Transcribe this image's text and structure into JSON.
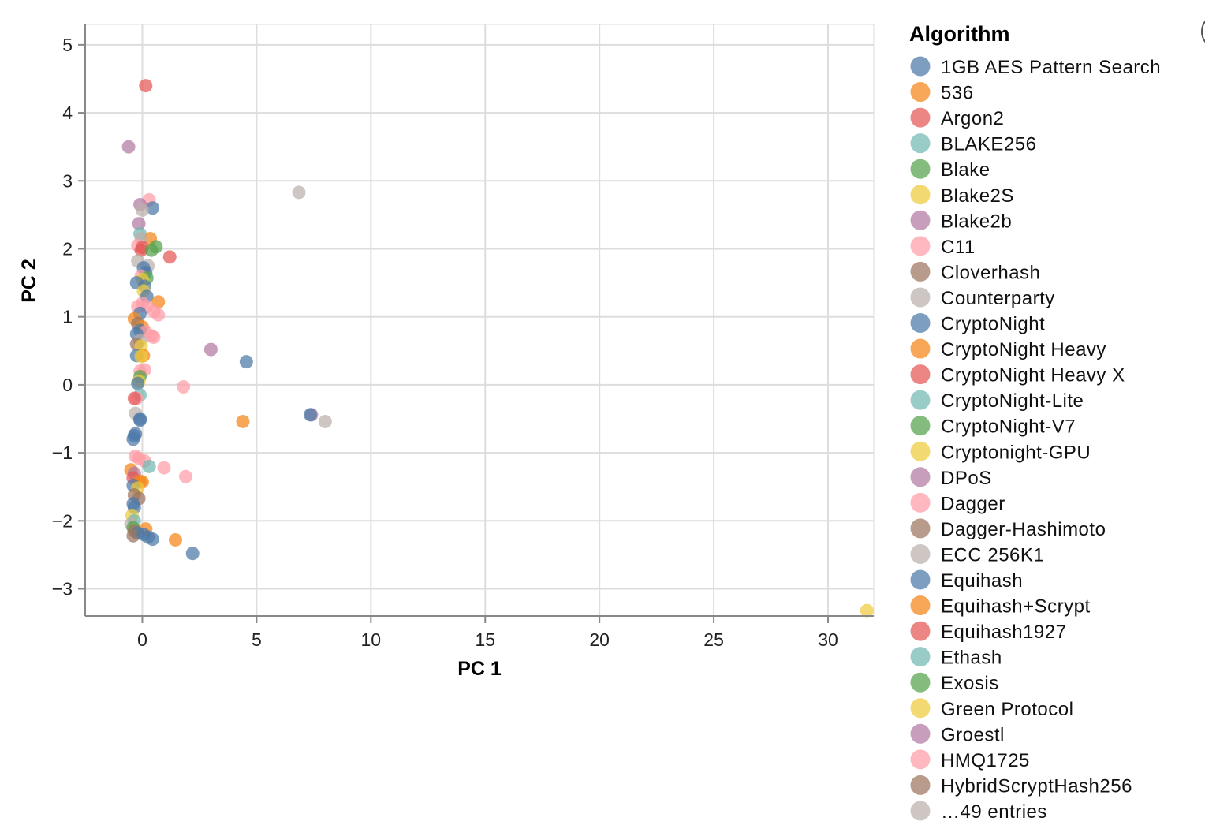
{
  "chart_data": {
    "type": "scatter",
    "title": "",
    "xlabel": "PC 1",
    "ylabel": "PC 2",
    "xlim": [
      -2.5,
      32
    ],
    "ylim": [
      -3.4,
      5.3
    ],
    "xticks": [
      0,
      5,
      10,
      15,
      20,
      25,
      30
    ],
    "yticks": [
      -3,
      -2,
      -1,
      0,
      1,
      2,
      3,
      4,
      5
    ],
    "xtick_labels": [
      "0",
      "5",
      "10",
      "15",
      "20",
      "25",
      "30"
    ],
    "ytick_labels": [
      "−3",
      "−2",
      "−1",
      "0",
      "1",
      "2",
      "3",
      "4",
      "5"
    ],
    "grid": true,
    "legend": {
      "title": "Algorithm",
      "placement": "right",
      "entries": [
        {
          "name": "1GB AES Pattern Search",
          "color": "#4c78a8"
        },
        {
          "name": "536",
          "color": "#f58518"
        },
        {
          "name": "Argon2",
          "color": "#e45756"
        },
        {
          "name": "BLAKE256",
          "color": "#72b7b2"
        },
        {
          "name": "Blake",
          "color": "#54a24b"
        },
        {
          "name": "Blake2S",
          "color": "#eeca3b"
        },
        {
          "name": "Blake2b",
          "color": "#b279a2"
        },
        {
          "name": "C11",
          "color": "#ff9da6"
        },
        {
          "name": "Cloverhash",
          "color": "#9d755d"
        },
        {
          "name": "Counterparty",
          "color": "#bab0ac"
        },
        {
          "name": "CryptoNight",
          "color": "#4c78a8"
        },
        {
          "name": "CryptoNight Heavy",
          "color": "#f58518"
        },
        {
          "name": "CryptoNight Heavy X",
          "color": "#e45756"
        },
        {
          "name": "CryptoNight-Lite",
          "color": "#72b7b2"
        },
        {
          "name": "CryptoNight-V7",
          "color": "#54a24b"
        },
        {
          "name": "Cryptonight-GPU",
          "color": "#eeca3b"
        },
        {
          "name": "DPoS",
          "color": "#b279a2"
        },
        {
          "name": "Dagger",
          "color": "#ff9da6"
        },
        {
          "name": "Dagger-Hashimoto",
          "color": "#9d755d"
        },
        {
          "name": "ECC 256K1",
          "color": "#bab0ac"
        },
        {
          "name": "Equihash",
          "color": "#4c78a8"
        },
        {
          "name": "Equihash+Scrypt",
          "color": "#f58518"
        },
        {
          "name": "Equihash1927",
          "color": "#e45756"
        },
        {
          "name": "Ethash",
          "color": "#72b7b2"
        },
        {
          "name": "Exosis",
          "color": "#54a24b"
        },
        {
          "name": "Green Protocol",
          "color": "#eeca3b"
        },
        {
          "name": "Groestl",
          "color": "#b279a2"
        },
        {
          "name": "HMQ1725",
          "color": "#ff9da6"
        },
        {
          "name": "HybridScryptHash256",
          "color": "#9d755d"
        },
        {
          "name": "…49 entries",
          "color": "#bab0ac"
        }
      ]
    },
    "points": [
      {
        "x": 0.15,
        "y": 4.4,
        "color": "#e45756"
      },
      {
        "x": -0.6,
        "y": 3.5,
        "color": "#b279a2"
      },
      {
        "x": 6.85,
        "y": 2.83,
        "color": "#bab0ac"
      },
      {
        "x": 0.3,
        "y": 2.72,
        "color": "#ff9da6"
      },
      {
        "x": -0.1,
        "y": 2.65,
        "color": "#b279a2"
      },
      {
        "x": 0.45,
        "y": 2.6,
        "color": "#4c78a8"
      },
      {
        "x": 0.0,
        "y": 2.57,
        "color": "#bab0ac"
      },
      {
        "x": -0.15,
        "y": 2.37,
        "color": "#b279a2"
      },
      {
        "x": -0.1,
        "y": 2.22,
        "color": "#72b7b2"
      },
      {
        "x": 0.35,
        "y": 2.15,
        "color": "#f58518"
      },
      {
        "x": -0.05,
        "y": 2.15,
        "color": "#bab0ac"
      },
      {
        "x": 0.6,
        "y": 2.03,
        "color": "#54a24b"
      },
      {
        "x": -0.2,
        "y": 2.05,
        "color": "#ff9da6"
      },
      {
        "x": 0.0,
        "y": 2.02,
        "color": "#e45756"
      },
      {
        "x": -0.05,
        "y": 1.98,
        "color": "#e45756"
      },
      {
        "x": 0.4,
        "y": 1.98,
        "color": "#54a24b"
      },
      {
        "x": 1.2,
        "y": 1.88,
        "color": "#e45756"
      },
      {
        "x": -0.2,
        "y": 1.82,
        "color": "#bab0ac"
      },
      {
        "x": 0.25,
        "y": 1.75,
        "color": "#bab0ac"
      },
      {
        "x": 0.05,
        "y": 1.72,
        "color": "#4c78a8"
      },
      {
        "x": 0.15,
        "y": 1.65,
        "color": "#4c78a8"
      },
      {
        "x": -0.05,
        "y": 1.6,
        "color": "#ff9da6"
      },
      {
        "x": 0.2,
        "y": 1.57,
        "color": "#54a24b"
      },
      {
        "x": 0.0,
        "y": 1.55,
        "color": "#eeca3b"
      },
      {
        "x": -0.25,
        "y": 1.5,
        "color": "#4c78a8"
      },
      {
        "x": 0.1,
        "y": 1.45,
        "color": "#4c78a8"
      },
      {
        "x": 0.05,
        "y": 1.38,
        "color": "#eeca3b"
      },
      {
        "x": 0.2,
        "y": 1.3,
        "color": "#4c78a8"
      },
      {
        "x": 0.7,
        "y": 1.22,
        "color": "#f58518"
      },
      {
        "x": 0.0,
        "y": 1.2,
        "color": "#ff9da6"
      },
      {
        "x": -0.2,
        "y": 1.15,
        "color": "#ff9da6"
      },
      {
        "x": 0.2,
        "y": 1.15,
        "color": "#ff9da6"
      },
      {
        "x": 0.5,
        "y": 1.08,
        "color": "#ff9da6"
      },
      {
        "x": -0.1,
        "y": 1.05,
        "color": "#4c78a8"
      },
      {
        "x": 0.7,
        "y": 1.03,
        "color": "#ff9da6"
      },
      {
        "x": -0.35,
        "y": 0.97,
        "color": "#f58518"
      },
      {
        "x": -0.2,
        "y": 0.9,
        "color": "#9d755d"
      },
      {
        "x": 0.0,
        "y": 0.85,
        "color": "#f58518"
      },
      {
        "x": -0.1,
        "y": 0.8,
        "color": "#4c78a8"
      },
      {
        "x": 0.15,
        "y": 0.78,
        "color": "#ff9da6"
      },
      {
        "x": -0.25,
        "y": 0.75,
        "color": "#4c78a8"
      },
      {
        "x": 0.4,
        "y": 0.72,
        "color": "#ff9da6"
      },
      {
        "x": 0.5,
        "y": 0.7,
        "color": "#ff9da6"
      },
      {
        "x": -0.1,
        "y": 0.65,
        "color": "#bab0ac"
      },
      {
        "x": -0.25,
        "y": 0.6,
        "color": "#9d755d"
      },
      {
        "x": -0.05,
        "y": 0.57,
        "color": "#eeca3b"
      },
      {
        "x": 3.0,
        "y": 0.52,
        "color": "#b279a2"
      },
      {
        "x": -0.25,
        "y": 0.43,
        "color": "#4c78a8"
      },
      {
        "x": 0.05,
        "y": 0.43,
        "color": "#f58518"
      },
      {
        "x": -0.05,
        "y": 0.42,
        "color": "#eeca3b"
      },
      {
        "x": 4.55,
        "y": 0.34,
        "color": "#4c78a8"
      },
      {
        "x": 0.1,
        "y": 0.22,
        "color": "#ff9da6"
      },
      {
        "x": -0.1,
        "y": 0.2,
        "color": "#ff9da6"
      },
      {
        "x": -0.1,
        "y": 0.12,
        "color": "#54a24b"
      },
      {
        "x": -0.15,
        "y": 0.05,
        "color": "#eeca3b"
      },
      {
        "x": -0.2,
        "y": 0.02,
        "color": "#4c78a8"
      },
      {
        "x": 1.8,
        "y": -0.03,
        "color": "#ff9da6"
      },
      {
        "x": -0.1,
        "y": -0.15,
        "color": "#72b7b2"
      },
      {
        "x": -0.25,
        "y": -0.2,
        "color": "#ff9da6"
      },
      {
        "x": -0.35,
        "y": -0.2,
        "color": "#e45756"
      },
      {
        "x": -0.3,
        "y": -0.42,
        "color": "#bab0ac"
      },
      {
        "x": 7.4,
        "y": -0.44,
        "color": "#b279a2"
      },
      {
        "x": 7.35,
        "y": -0.44,
        "color": "#4c78a8"
      },
      {
        "x": -0.1,
        "y": -0.5,
        "color": "#4c78a8"
      },
      {
        "x": -0.1,
        "y": -0.52,
        "color": "#4c78a8"
      },
      {
        "x": 8.0,
        "y": -0.54,
        "color": "#bab0ac"
      },
      {
        "x": 4.4,
        "y": -0.54,
        "color": "#f58518"
      },
      {
        "x": -0.3,
        "y": -0.72,
        "color": "#4c78a8"
      },
      {
        "x": -0.35,
        "y": -0.75,
        "color": "#4c78a8"
      },
      {
        "x": -0.4,
        "y": -0.8,
        "color": "#4c78a8"
      },
      {
        "x": -0.3,
        "y": -1.05,
        "color": "#ff9da6"
      },
      {
        "x": -0.15,
        "y": -1.08,
        "color": "#ff9da6"
      },
      {
        "x": 0.1,
        "y": -1.12,
        "color": "#ff9da6"
      },
      {
        "x": 0.3,
        "y": -1.2,
        "color": "#72b7b2"
      },
      {
        "x": 0.95,
        "y": -1.22,
        "color": "#ff9da6"
      },
      {
        "x": -0.5,
        "y": -1.25,
        "color": "#f58518"
      },
      {
        "x": -0.35,
        "y": -1.3,
        "color": "#b279a2"
      },
      {
        "x": 1.9,
        "y": -1.35,
        "color": "#ff9da6"
      },
      {
        "x": -0.4,
        "y": -1.37,
        "color": "#e45756"
      },
      {
        "x": -0.1,
        "y": -1.42,
        "color": "#f58518"
      },
      {
        "x": 0.0,
        "y": -1.43,
        "color": "#f58518"
      },
      {
        "x": -0.4,
        "y": -1.48,
        "color": "#4c78a8"
      },
      {
        "x": -0.2,
        "y": -1.52,
        "color": "#eeca3b"
      },
      {
        "x": -0.35,
        "y": -1.62,
        "color": "#9d755d"
      },
      {
        "x": -0.15,
        "y": -1.67,
        "color": "#9d755d"
      },
      {
        "x": -0.4,
        "y": -1.75,
        "color": "#4c78a8"
      },
      {
        "x": -0.35,
        "y": -1.8,
        "color": "#4c78a8"
      },
      {
        "x": -0.45,
        "y": -1.92,
        "color": "#eeca3b"
      },
      {
        "x": -0.35,
        "y": -2.0,
        "color": "#72b7b2"
      },
      {
        "x": -0.5,
        "y": -2.05,
        "color": "#bab0ac"
      },
      {
        "x": -0.4,
        "y": -2.1,
        "color": "#54a24b"
      },
      {
        "x": 0.15,
        "y": -2.12,
        "color": "#f58518"
      },
      {
        "x": -0.35,
        "y": -2.15,
        "color": "#9d755d"
      },
      {
        "x": -0.2,
        "y": -2.18,
        "color": "#4c78a8"
      },
      {
        "x": -0.4,
        "y": -2.22,
        "color": "#9d755d"
      },
      {
        "x": 0.05,
        "y": -2.2,
        "color": "#4c78a8"
      },
      {
        "x": 0.25,
        "y": -2.24,
        "color": "#4c78a8"
      },
      {
        "x": 0.45,
        "y": -2.27,
        "color": "#4c78a8"
      },
      {
        "x": 1.45,
        "y": -2.28,
        "color": "#f58518"
      },
      {
        "x": 2.2,
        "y": -2.48,
        "color": "#4c78a8"
      },
      {
        "x": 31.7,
        "y": -3.32,
        "color": "#eeca3b"
      }
    ]
  }
}
